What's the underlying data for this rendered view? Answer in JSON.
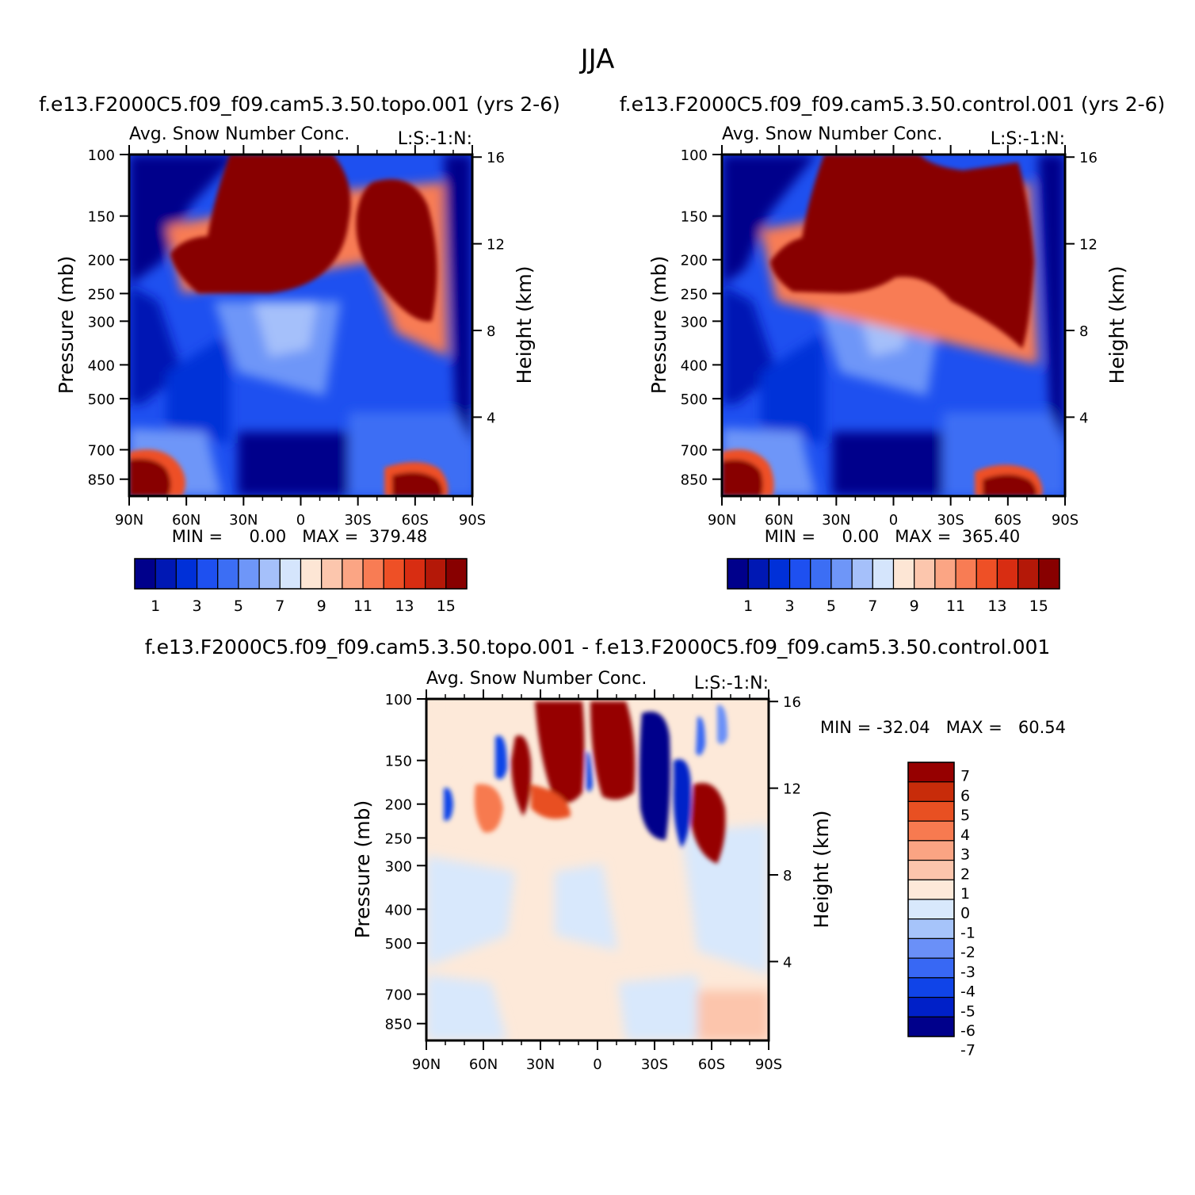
{
  "page_title": "JJA",
  "colors": {
    "topo_control_palette": [
      "#00008b",
      "#0018b4",
      "#0030d8",
      "#1e50f0",
      "#3c6ef4",
      "#6e96f8",
      "#a5c0fa",
      "#d5e5fc",
      "#fde6d5",
      "#fcc6ad",
      "#fba584",
      "#f87c54",
      "#ee5026",
      "#d82d12",
      "#b41808",
      "#880000"
    ],
    "diff_palette": [
      "#00008b",
      "#0020c8",
      "#1044e8",
      "#3868f4",
      "#6a90f8",
      "#a6c4fa",
      "#d8e8fc",
      "#fde9d9",
      "#fcc5ac",
      "#faa483",
      "#f77a50",
      "#e85022",
      "#c82c0a",
      "#960000"
    ]
  },
  "panels": [
    {
      "id": "topo",
      "case_title": "f.e13.F2000C5.f09_f09.cam5.3.50.topo.001 (yrs 2-6)",
      "var_title": "Avg. Snow Number Conc.",
      "var_units": "L:S:-1:N:",
      "min_max": "MIN =     0.00   MAX =  379.48",
      "ylabel_left": "Pressure (mb)",
      "ylabel_right": "Height (km)",
      "colorbar_labels": [
        "1",
        "3",
        "5",
        "7",
        "9",
        "11",
        "13",
        "15"
      ]
    },
    {
      "id": "control",
      "case_title": "f.e13.F2000C5.f09_f09.cam5.3.50.control.001 (yrs 2-6)",
      "var_title": "Avg. Snow Number Conc.",
      "var_units": "L:S:-1:N:",
      "min_max": "MIN =     0.00   MAX =  365.40",
      "ylabel_left": "Pressure (mb)",
      "ylabel_right": "Height (km)",
      "colorbar_labels": [
        "1",
        "3",
        "5",
        "7",
        "9",
        "11",
        "13",
        "15"
      ]
    },
    {
      "id": "diff",
      "case_title": "f.e13.F2000C5.f09_f09.cam5.3.50.topo.001 - f.e13.F2000C5.f09_f09.cam5.3.50.control.001",
      "var_title": "Avg. Snow Number Conc.",
      "var_units": "L:S:-1:N:",
      "min_max": "MIN = -32.04   MAX =   60.54",
      "ylabel_left": "Pressure (mb)",
      "ylabel_right": "Height (km)",
      "colorbar_labels": [
        "7",
        "6",
        "5",
        "4",
        "3",
        "2",
        "1",
        "0",
        "-1",
        "-2",
        "-3",
        "-4",
        "-5",
        "-6",
        "-7"
      ]
    }
  ],
  "chart_data": [
    {
      "type": "heatmap",
      "title": "Avg. Snow Number Conc.",
      "x_ticks": [
        "90N",
        "60N",
        "30N",
        "0",
        "30S",
        "60S",
        "90S"
      ],
      "y_ticks_pressure": [
        "100",
        "150",
        "200",
        "250",
        "300",
        "400",
        "500",
        "700",
        "850"
      ],
      "y_ticks_height": [
        "16",
        "12",
        "8",
        "4"
      ],
      "ylabel": "Pressure (mb)",
      "ylabel_right": "Height (km)",
      "xlim": [
        90,
        -90
      ],
      "ylim_pressure": [
        100,
        950
      ],
      "ylog": true,
      "colorbar_levels": [
        1,
        2,
        3,
        4,
        5,
        6,
        7,
        8,
        9,
        10,
        11,
        12,
        13,
        14,
        15
      ],
      "min": 0.0,
      "max": 379.48,
      "features": [
        {
          "lat": [
            55,
            -35
          ],
          "p": [
            100,
            230
          ],
          "value": ">15"
        },
        {
          "lat": [
            -25,
            -70
          ],
          "p": [
            100,
            330
          ],
          "value": ">15"
        },
        {
          "lat": [
            90,
            58
          ],
          "p": [
            700,
            950
          ],
          "value": ">15"
        },
        {
          "lat": [
            -45,
            -78
          ],
          "p": [
            750,
            950
          ],
          "value": ">15"
        }
      ]
    },
    {
      "type": "heatmap",
      "title": "Avg. Snow Number Conc.",
      "x_ticks": [
        "90N",
        "60N",
        "30N",
        "0",
        "30S",
        "60S",
        "90S"
      ],
      "y_ticks_pressure": [
        "100",
        "150",
        "200",
        "250",
        "300",
        "400",
        "500",
        "700",
        "850"
      ],
      "y_ticks_height": [
        "16",
        "12",
        "8",
        "4"
      ],
      "ylabel": "Pressure (mb)",
      "ylabel_right": "Height (km)",
      "xlim": [
        90,
        -90
      ],
      "ylim_pressure": [
        100,
        950
      ],
      "ylog": true,
      "colorbar_levels": [
        1,
        2,
        3,
        4,
        5,
        6,
        7,
        8,
        9,
        10,
        11,
        12,
        13,
        14,
        15
      ],
      "min": 0.0,
      "max": 365.4,
      "features": [
        {
          "lat": [
            62,
            -72
          ],
          "p": [
            100,
            240
          ],
          "value": ">15"
        },
        {
          "lat": [
            -10,
            -72
          ],
          "p": [
            100,
            350
          ],
          "value": ">15"
        },
        {
          "lat": [
            90,
            55
          ],
          "p": [
            700,
            950
          ],
          "value": ">15"
        },
        {
          "lat": [
            -42,
            -78
          ],
          "p": [
            760,
            950
          ],
          "value": ">15"
        }
      ]
    },
    {
      "type": "heatmap",
      "title": "Avg. Snow Number Conc.",
      "x_ticks": [
        "90N",
        "60N",
        "30N",
        "0",
        "30S",
        "60S",
        "90S"
      ],
      "y_ticks_pressure": [
        "100",
        "150",
        "200",
        "250",
        "300",
        "400",
        "500",
        "700",
        "850"
      ],
      "y_ticks_height": [
        "16",
        "12",
        "8",
        "4"
      ],
      "ylabel": "Pressure (mb)",
      "ylabel_right": "Height (km)",
      "xlim": [
        90,
        -90
      ],
      "ylim_pressure": [
        100,
        950
      ],
      "ylog": true,
      "colorbar_levels": [
        -7,
        -6,
        -5,
        -4,
        -3,
        -2,
        -1,
        0,
        1,
        2,
        3,
        4,
        5,
        6,
        7
      ],
      "min": -32.04,
      "max": 60.54,
      "features": [
        {
          "lat": [
            33,
            2
          ],
          "p": [
            100,
            230
          ],
          "value": ">7"
        },
        {
          "lat": [
            0,
            -22
          ],
          "p": [
            100,
            210
          ],
          "value": ">7"
        },
        {
          "lat": [
            -22,
            -44
          ],
          "p": [
            110,
            240
          ],
          "value": "<-7"
        },
        {
          "lat": [
            -50,
            -70
          ],
          "p": [
            160,
            300
          ],
          "value": ">7"
        },
        {
          "lat": [
            55,
            30
          ],
          "p": [
            130,
            270
          ],
          "value": "mixed"
        }
      ]
    }
  ]
}
